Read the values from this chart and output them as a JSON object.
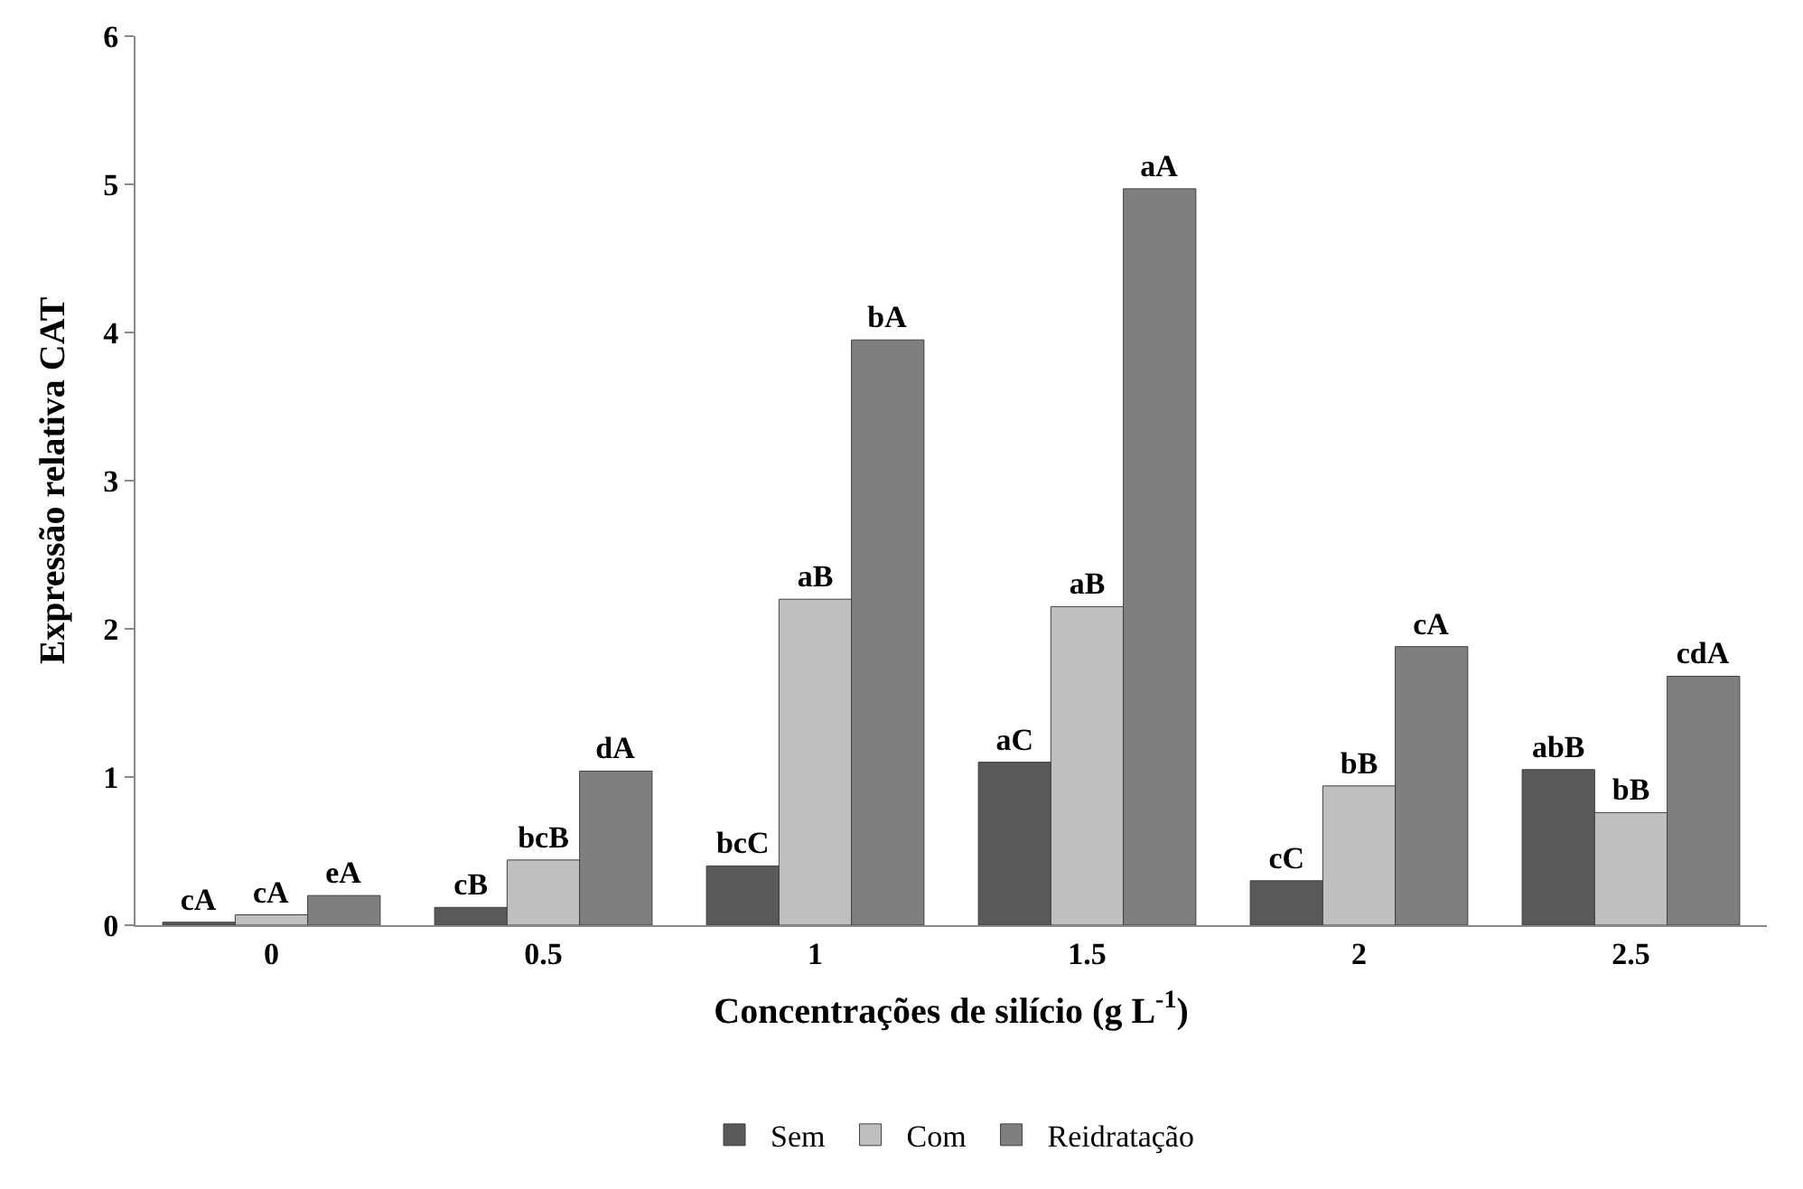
{
  "chart_data": {
    "type": "bar",
    "xlabel": "Concentrações de silício (g L$^{-1}$)",
    "ylabel": "Expressão relativa CAT",
    "categories": [
      "0",
      "0.5",
      "1",
      "1.5",
      "2",
      "2.5"
    ],
    "series": [
      {
        "name": "Sem",
        "color": "#595959",
        "values": [
          0.02,
          0.12,
          0.4,
          1.1,
          0.3,
          1.05
        ],
        "value_labels": [
          "cA",
          "cB",
          "bcC",
          "aC",
          "cC",
          "abB"
        ]
      },
      {
        "name": "Com",
        "color": "#bfbfbf",
        "values": [
          0.07,
          0.44,
          2.2,
          2.15,
          0.94,
          0.76
        ],
        "value_labels": [
          "cA",
          "bcB",
          "aB",
          "aB",
          "bB",
          "bB"
        ]
      },
      {
        "name": "Reidratação",
        "color": "#7f7f7f",
        "values": [
          0.2,
          1.04,
          3.95,
          4.97,
          1.88,
          1.68
        ],
        "value_labels": [
          "eA",
          "dA",
          "bA",
          "aA",
          "cA",
          "cdA"
        ]
      }
    ],
    "ylim": [
      0,
      6
    ],
    "yticks": [
      0,
      1,
      2,
      3,
      4,
      5,
      6
    ],
    "grid": false,
    "legend": "bottom"
  }
}
